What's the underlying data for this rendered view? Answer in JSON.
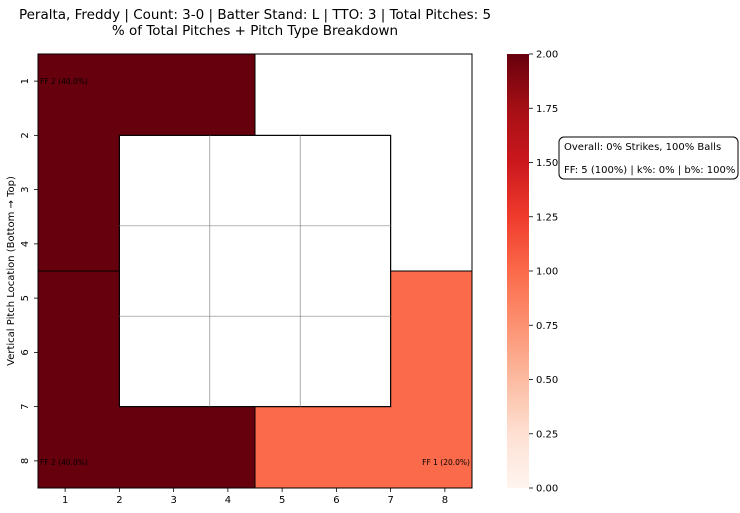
{
  "chart_data": {
    "type": "heatmap",
    "title_line1": "Peralta, Freddy | Count: 3-0 | Batter Stand: L | TTO: 3 | Total Pitches: 5",
    "title_line2": "% of Total Pitches + Pitch Type Breakdown",
    "ylabel": "Vertical Pitch Location (Bottom → Top)",
    "xlabel": "",
    "x_ticks": [
      "1",
      "2",
      "3",
      "4",
      "5",
      "6",
      "7",
      "8"
    ],
    "y_ticks": [
      "1",
      "2",
      "3",
      "4",
      "5",
      "6",
      "7",
      "8"
    ],
    "zones": [
      {
        "x": [
          1,
          4
        ],
        "y": [
          1,
          4
        ],
        "value": 2,
        "label": "FF 2 (40.0%)",
        "label_corner": "top-left"
      },
      {
        "x": [
          5,
          8
        ],
        "y": [
          1,
          4
        ],
        "value": 0,
        "label": "",
        "label_corner": "top-right"
      },
      {
        "x": [
          1,
          4
        ],
        "y": [
          5,
          8
        ],
        "value": 2,
        "label": "FF 2 (40.0%)",
        "label_corner": "bottom-left"
      },
      {
        "x": [
          5,
          8
        ],
        "y": [
          5,
          8
        ],
        "value": 1,
        "label": "FF 1 (20.0%)",
        "label_corner": "bottom-right"
      }
    ],
    "strike_zone": {
      "x": [
        2,
        7
      ],
      "y": [
        2,
        7
      ],
      "columns": 3,
      "rows": 3
    },
    "colorbar": {
      "min": 0,
      "max": 2,
      "ticks": [
        "0.00",
        "0.25",
        "0.50",
        "0.75",
        "1.00",
        "1.25",
        "1.50",
        "1.75",
        "2.00"
      ],
      "colormap": "Reds",
      "color_stops": [
        "#fff5f0",
        "#fee0d2",
        "#fcbba1",
        "#fc9272",
        "#fb6a4a",
        "#ef3b2c",
        "#cb181d",
        "#a50f15",
        "#67000d"
      ]
    },
    "annotation": {
      "line1": "Overall: 0% Strikes, 100% Balls",
      "line2": "FF: 5 (100%) | k%: 0% | b%: 100%"
    },
    "grid": false
  }
}
